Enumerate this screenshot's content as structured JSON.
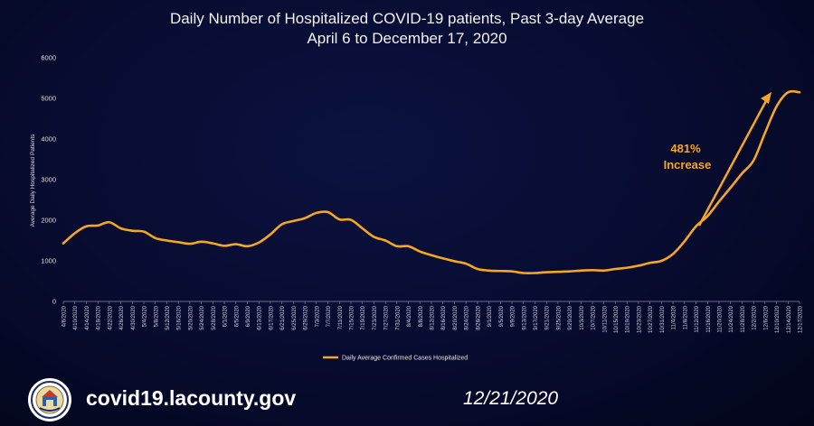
{
  "chart_data": {
    "type": "line",
    "title": "Daily Number of Hospitalized COVID-19 patients, Past 3-day Average",
    "subtitle": "April 6 to December 17, 2020",
    "xlabel": "",
    "ylabel": "Average Daily Hospitalized Patients",
    "ylim": [
      0,
      6000
    ],
    "yticks": [
      0,
      1000,
      2000,
      3000,
      4000,
      5000,
      6000
    ],
    "grid": false,
    "legend_position": "bottom-center",
    "series_color": "#f5a623",
    "x_tick_labels": [
      "4/6/2020",
      "4/10/2020",
      "4/14/2020",
      "4/18/2020",
      "4/22/2020",
      "4/26/2020",
      "4/30/2020",
      "5/4/2020",
      "5/8/2020",
      "5/12/2020",
      "5/16/2020",
      "5/20/2020",
      "5/24/2020",
      "5/28/2020",
      "6/1/2020",
      "6/5/2020",
      "6/9/2020",
      "6/13/2020",
      "6/17/2020",
      "6/21/2020",
      "6/25/2020",
      "6/29/2020",
      "7/3/2020",
      "7/7/2020",
      "7/11/2020",
      "7/15/2020",
      "7/19/2020",
      "7/23/2020",
      "7/27/2020",
      "7/31/2020",
      "8/4/2020",
      "8/8/2020",
      "8/12/2020",
      "8/16/2020",
      "8/20/2020",
      "8/24/2020",
      "8/28/2020",
      "9/1/2020",
      "9/5/2020",
      "9/9/2020",
      "9/13/2020",
      "9/17/2020",
      "9/21/2020",
      "9/25/2020",
      "9/29/2020",
      "10/3/2020",
      "10/7/2020",
      "10/11/2020",
      "10/15/2020",
      "10/19/2020",
      "10/23/2020",
      "10/27/2020",
      "10/31/2020",
      "11/4/2020",
      "11/8/2020",
      "11/12/2020",
      "11/16/2020",
      "11/20/2020",
      "11/24/2020",
      "11/28/2020",
      "12/2/2020",
      "12/6/2020",
      "12/10/2020",
      "12/14/2020",
      "12/17/2020"
    ],
    "series": [
      {
        "name": "Daily Average Confirmed Cases Hospitalized",
        "x": [
          "4/6/2020",
          "4/10/2020",
          "4/14/2020",
          "4/18/2020",
          "4/22/2020",
          "4/26/2020",
          "4/30/2020",
          "5/4/2020",
          "5/8/2020",
          "5/12/2020",
          "5/16/2020",
          "5/20/2020",
          "5/24/2020",
          "5/28/2020",
          "6/1/2020",
          "6/5/2020",
          "6/9/2020",
          "6/13/2020",
          "6/17/2020",
          "6/21/2020",
          "6/25/2020",
          "6/29/2020",
          "7/3/2020",
          "7/7/2020",
          "7/11/2020",
          "7/15/2020",
          "7/19/2020",
          "7/23/2020",
          "7/27/2020",
          "7/31/2020",
          "8/4/2020",
          "8/8/2020",
          "8/12/2020",
          "8/16/2020",
          "8/20/2020",
          "8/24/2020",
          "8/28/2020",
          "9/1/2020",
          "9/5/2020",
          "9/9/2020",
          "9/13/2020",
          "9/17/2020",
          "9/21/2020",
          "9/25/2020",
          "9/29/2020",
          "10/3/2020",
          "10/7/2020",
          "10/11/2020",
          "10/15/2020",
          "10/19/2020",
          "10/23/2020",
          "10/27/2020",
          "10/31/2020",
          "11/4/2020",
          "11/8/2020",
          "11/12/2020",
          "11/16/2020",
          "11/20/2020",
          "11/24/2020",
          "11/28/2020",
          "12/2/2020",
          "12/6/2020",
          "12/10/2020",
          "12/14/2020",
          "12/17/2020"
        ],
        "values": [
          1430,
          1680,
          1850,
          1870,
          1950,
          1800,
          1740,
          1720,
          1560,
          1500,
          1460,
          1420,
          1470,
          1430,
          1370,
          1410,
          1360,
          1450,
          1650,
          1900,
          1980,
          2050,
          2180,
          2200,
          2020,
          2010,
          1800,
          1590,
          1500,
          1360,
          1360,
          1230,
          1140,
          1060,
          990,
          930,
          800,
          760,
          750,
          740,
          700,
          700,
          720,
          730,
          740,
          760,
          770,
          760,
          800,
          830,
          880,
          950,
          1000,
          1170,
          1480,
          1850,
          2100,
          2460,
          2800,
          3150,
          3470,
          4150,
          4800,
          5150,
          5150
        ]
      }
    ],
    "annotation": {
      "text_line1": "481%",
      "text_line2": "Increase",
      "color": "#f5a623"
    }
  },
  "footer": {
    "url": "covid19.lacounty.gov",
    "date": "12/21/2020",
    "logo_icon": "la-county-seal-icon"
  }
}
